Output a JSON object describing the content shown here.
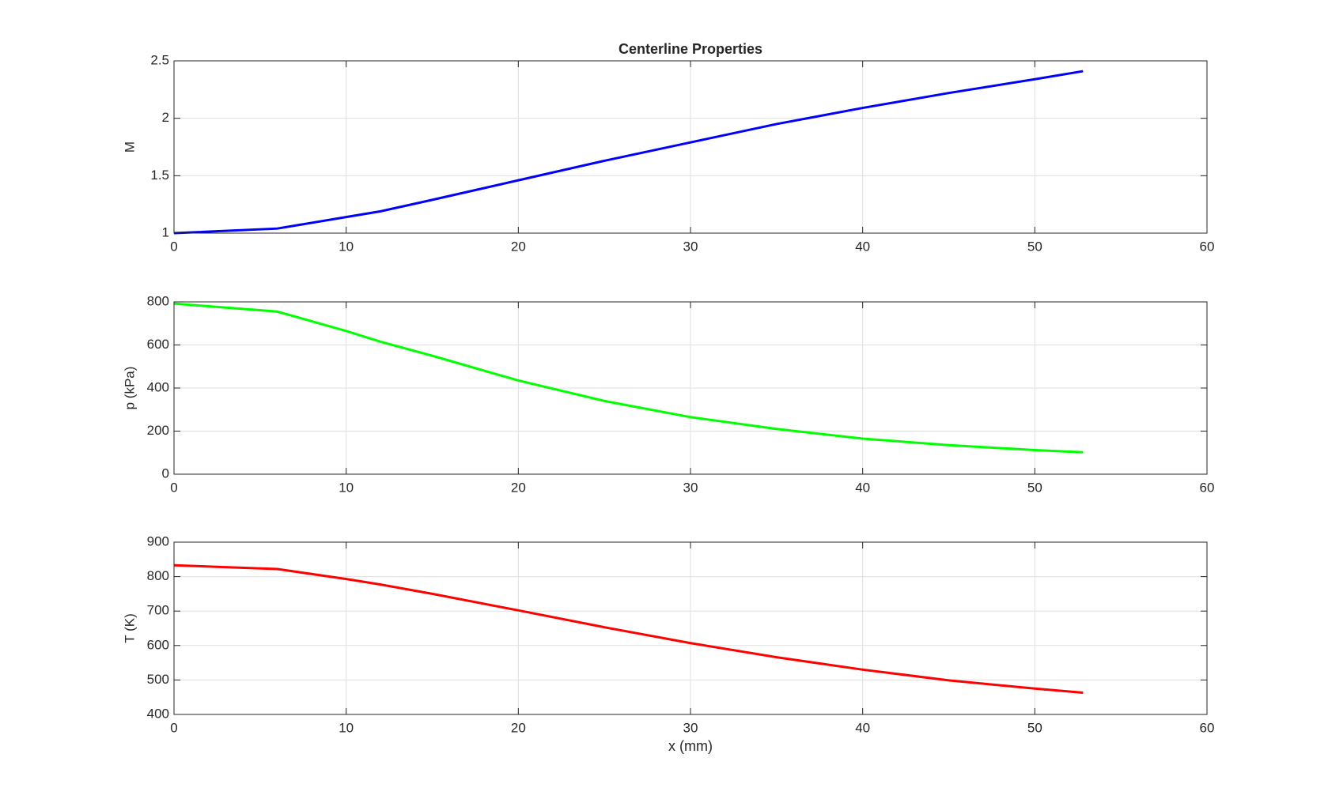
{
  "chart_data": [
    {
      "type": "line",
      "title": "Centerline Properties",
      "ylabel": "M",
      "x": [
        0,
        6,
        10,
        12,
        15,
        20,
        25,
        30,
        35,
        40,
        45,
        50,
        52.8
      ],
      "values": [
        1.0,
        1.04,
        1.14,
        1.19,
        1.29,
        1.46,
        1.63,
        1.79,
        1.95,
        2.09,
        2.22,
        2.34,
        2.41
      ],
      "color": "#0000ff",
      "xlim": [
        0,
        60
      ],
      "xticks": [
        0,
        10,
        20,
        30,
        40,
        50,
        60
      ],
      "ylim": [
        1,
        2.5
      ],
      "yticks": [
        1,
        1.5,
        2,
        2.5
      ],
      "grid": true
    },
    {
      "type": "line",
      "ylabel": "p (kPa)",
      "x": [
        0,
        6,
        10,
        12,
        15,
        20,
        25,
        30,
        35,
        40,
        45,
        50,
        52.8
      ],
      "values": [
        792,
        755,
        665,
        615,
        550,
        435,
        340,
        265,
        210,
        165,
        135,
        112,
        102
      ],
      "color": "#00ff00",
      "xlim": [
        0,
        60
      ],
      "xticks": [
        0,
        10,
        20,
        30,
        40,
        50,
        60
      ],
      "ylim": [
        0,
        800
      ],
      "yticks": [
        0,
        200,
        400,
        600,
        800
      ],
      "grid": true
    },
    {
      "type": "line",
      "ylabel": "T (K)",
      "xlabel": "x (mm)",
      "x": [
        0,
        6,
        10,
        12,
        15,
        20,
        25,
        30,
        35,
        40,
        45,
        50,
        52.8
      ],
      "values": [
        833,
        822,
        793,
        777,
        750,
        702,
        653,
        607,
        566,
        530,
        499,
        475,
        463
      ],
      "color": "#ff0000",
      "xlim": [
        0,
        60
      ],
      "xticks": [
        0,
        10,
        20,
        30,
        40,
        50,
        60
      ],
      "ylim": [
        400,
        900
      ],
      "yticks": [
        400,
        500,
        600,
        700,
        800,
        900
      ],
      "grid": true
    }
  ]
}
